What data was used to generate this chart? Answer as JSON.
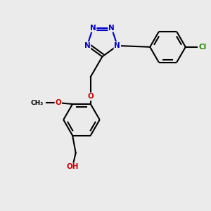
{
  "background_color": "#ebebeb",
  "bond_color": "#000000",
  "atom_colors": {
    "N": "#0000cc",
    "O": "#cc0000",
    "Cl": "#228800",
    "C": "#000000"
  },
  "figsize": [
    3.0,
    3.0
  ],
  "dpi": 100,
  "xlim": [
    -1.6,
    1.6
  ],
  "ylim": [
    -1.7,
    1.5
  ]
}
